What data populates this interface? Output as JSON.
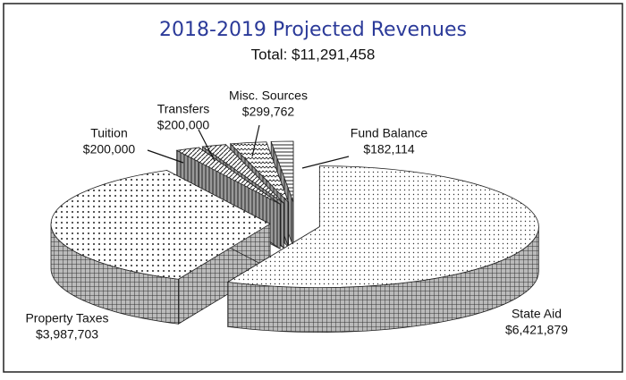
{
  "chart_data": {
    "type": "pie",
    "title": "2018-2019 Projected Revenues",
    "subtitle": "Total: $11,291,458",
    "categories": [
      "State Aid",
      "Property Taxes",
      "Tuition",
      "Transfers",
      "Misc. Sources",
      "Fund Balance"
    ],
    "values": [
      6421879,
      3987703,
      200000,
      200000,
      299762,
      182114
    ],
    "value_labels": [
      "$6,421,879",
      "$3,987,703",
      "$200,000",
      "$200,000",
      "$299,762",
      "$182,114"
    ]
  }
}
